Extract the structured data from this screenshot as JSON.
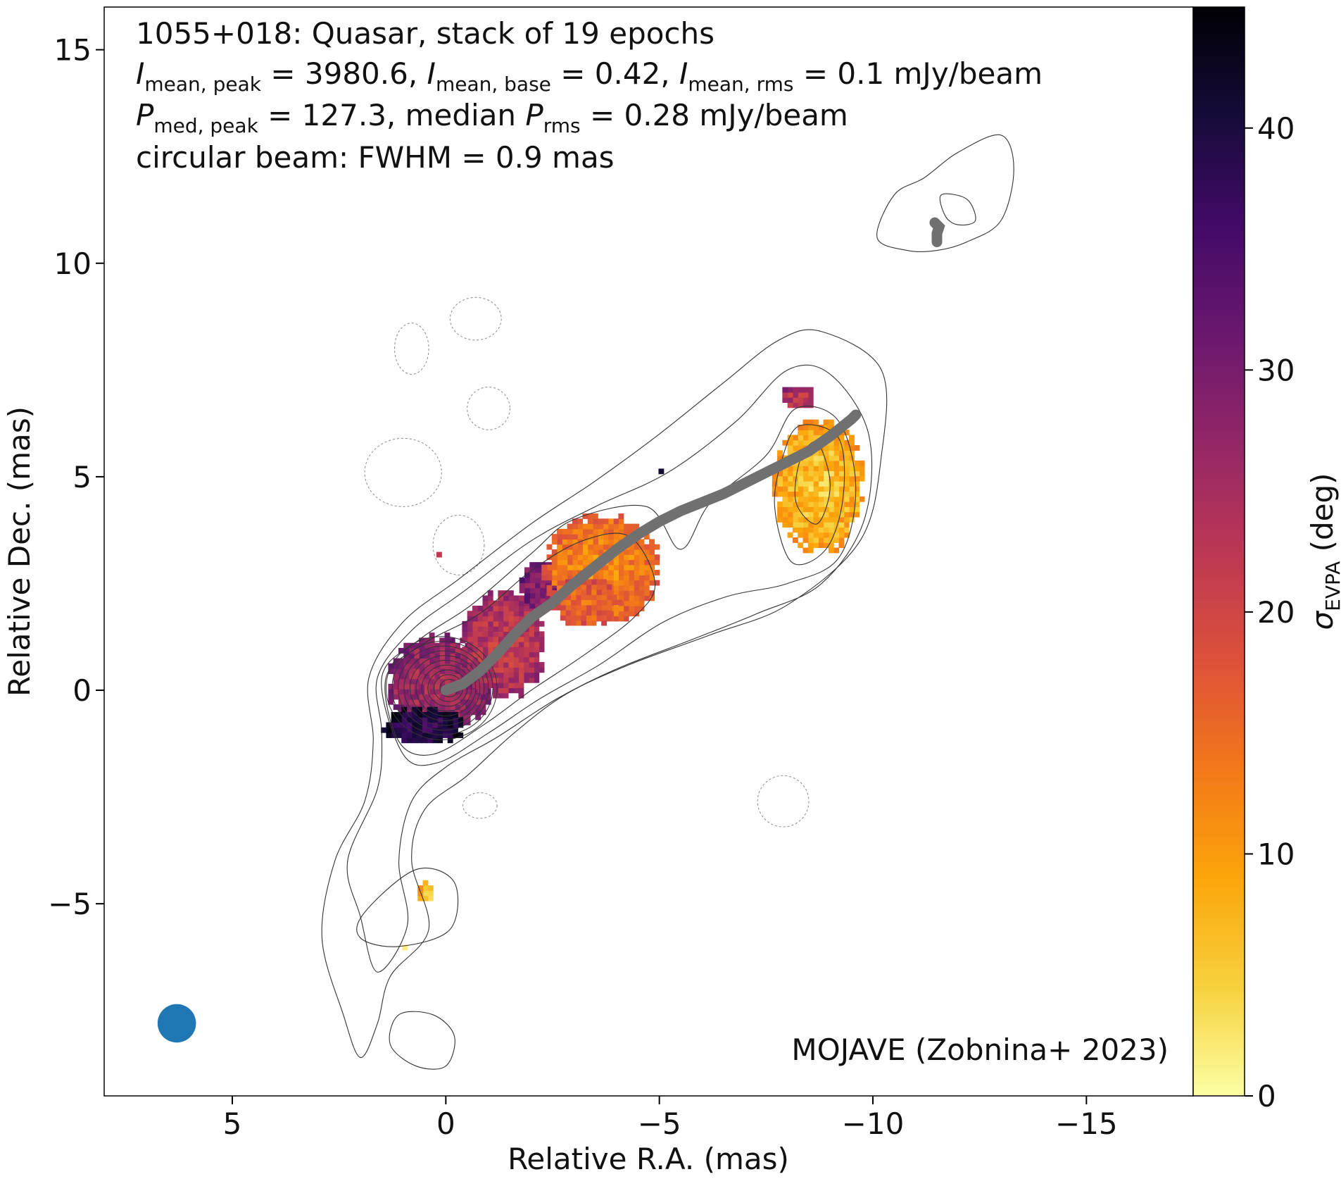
{
  "chart_data": {
    "type": "heatmap",
    "title_lines": [
      "1055+018: Quasar, stack of 19 epochs",
      "I_mean,peak = 3980.6, I_mean,base = 0.42, I_mean,rms = 0.1 mJy/beam",
      "P_med,peak = 127.3, median P_rms = 0.28 mJy/beam",
      "circular beam: FWHM = 0.9 mas"
    ],
    "title": {
      "line1": "1055+018: Quasar, stack of 19 epochs",
      "l2_i1": "I",
      "l2_s1": "mean, peak",
      "l2_t1": " = 3980.6, ",
      "l2_i2": "I",
      "l2_s2": "mean, base",
      "l2_t2": " = 0.42, ",
      "l2_i3": "I",
      "l2_s3": "mean, rms",
      "l2_t3": " = 0.1 mJy/beam",
      "l3_i1": "P",
      "l3_s1": "med, peak",
      "l3_t1": " = 127.3, median ",
      "l3_i2": "P",
      "l3_s2": "rms",
      "l3_t2": " = 0.28 mJy/beam",
      "line4": "circular beam: FWHM = 0.9 mas"
    },
    "credit": "MOJAVE (Zobnina+ 2023)",
    "xlabel": "Relative R.A. (mas)",
    "ylabel": "Relative Dec. (mas)",
    "xlim": [
      8,
      -17.5
    ],
    "ylim": [
      -9.5,
      16
    ],
    "xticks": [
      5,
      0,
      -5,
      -10,
      -15
    ],
    "xtick_labels": [
      "5",
      "0",
      "−5",
      "−10",
      "−15"
    ],
    "yticks": [
      -5,
      0,
      5,
      10,
      15
    ],
    "ytick_labels": [
      "−5",
      "0",
      "5",
      "10",
      "15"
    ],
    "colorbar": {
      "label_symbol": "σ",
      "label_sub": "EVPA",
      "label_unit": " (deg)",
      "cmap": "inferno_r",
      "range": [
        0,
        45
      ],
      "ticks": [
        0,
        10,
        20,
        30,
        40
      ],
      "tick_labels": [
        "0",
        "10",
        "20",
        "30",
        "40"
      ],
      "colors": [
        "#fcffa4",
        "#f7d13d",
        "#fca50a",
        "#f37819",
        "#dd513a",
        "#bc3754",
        "#932667",
        "#6a176e",
        "#420a68",
        "#160b39",
        "#000004"
      ]
    },
    "beam": {
      "x": 6.3,
      "y": -7.8,
      "fwhm": 0.9,
      "color": "#1f77b4"
    },
    "ridgeline": {
      "color": "#707070",
      "x": [
        0,
        -0.4,
        -0.8,
        -1.2,
        -1.6,
        -2.0,
        -2.5,
        -3.0,
        -3.5,
        -4.0,
        -4.5,
        -5.0,
        -5.5,
        -6.0,
        -6.5,
        -7.0,
        -7.5,
        -8.0,
        -8.5,
        -9.0,
        -9.5,
        -9.6
      ],
      "y": [
        0,
        0.15,
        0.45,
        0.85,
        1.3,
        1.7,
        2.05,
        2.5,
        2.9,
        3.3,
        3.65,
        3.95,
        4.2,
        4.4,
        4.6,
        4.85,
        5.1,
        5.35,
        5.6,
        5.95,
        6.35,
        6.45
      ]
    },
    "ridgeline_tail": {
      "x": [
        -11.5,
        -11.5,
        -11.55,
        -11.45
      ],
      "y": [
        10.5,
        10.7,
        10.85,
        10.95
      ]
    },
    "sigma_evpa_regions": [
      {
        "name": "core",
        "x": 0.2,
        "y": 0.1,
        "rx": 1.25,
        "ry": 1.15,
        "value": 25
      },
      {
        "name": "core-edge",
        "x": 0.6,
        "y": -0.9,
        "rx": 1.0,
        "ry": 0.45,
        "value": 38
      },
      {
        "name": "inner-jet",
        "x": -1.3,
        "y": 1.0,
        "rx": 1.0,
        "ry": 1.3,
        "value": 22
      },
      {
        "name": "inner-jet-edge",
        "x": -2.2,
        "y": 2.4,
        "rx": 0.6,
        "ry": 0.6,
        "value": 28
      },
      {
        "name": "mid-jet",
        "x": -3.6,
        "y": 2.8,
        "rx": 1.4,
        "ry": 1.3,
        "value": 12
      },
      {
        "name": "mid-jet-inner",
        "x": -3.2,
        "y": 2.0,
        "rx": 0.8,
        "ry": 0.6,
        "value": 15
      },
      {
        "name": "outer-jet",
        "x": -8.7,
        "y": 4.7,
        "rx": 1.1,
        "ry": 1.6,
        "value": 6
      },
      {
        "name": "outer-jet-spot",
        "x": -8.2,
        "y": 6.8,
        "rx": 0.4,
        "ry": 0.3,
        "value": 22
      },
      {
        "name": "south-spot",
        "x": 0.5,
        "y": -4.8,
        "rx": 0.2,
        "ry": 0.25,
        "value": 5
      },
      {
        "name": "south-dot",
        "x": 1.0,
        "y": -6.1,
        "rx": 0.1,
        "ry": 0.1,
        "value": 4
      },
      {
        "name": "pixel-1",
        "x": -5.0,
        "y": 5.05,
        "rx": 0.1,
        "ry": 0.1,
        "value": 44
      },
      {
        "name": "pixel-2",
        "x": 0.2,
        "y": 3.1,
        "rx": 0.1,
        "ry": 0.1,
        "value": 22
      }
    ],
    "intensity_contours": [
      {
        "name": "c1",
        "points": [
          [
            1.8,
            0.3
          ],
          [
            1.0,
            1.6
          ],
          [
            -0.3,
            2.6
          ],
          [
            -2.0,
            3.9
          ],
          [
            -3.5,
            4.9
          ],
          [
            -5.0,
            6.0
          ],
          [
            -6.5,
            7.2
          ],
          [
            -7.8,
            8.2
          ],
          [
            -8.8,
            8.4
          ],
          [
            -10.2,
            7.5
          ],
          [
            -10.2,
            5.5
          ],
          [
            -9.7,
            3.5
          ],
          [
            -8.0,
            2.0
          ],
          [
            -6.2,
            1.3
          ],
          [
            -4.3,
            0.6
          ],
          [
            -2.8,
            -0.1
          ],
          [
            -1.6,
            -1.0
          ],
          [
            -0.5,
            -2.0
          ],
          [
            0.5,
            -2.8
          ],
          [
            0.8,
            -4.0
          ],
          [
            0.4,
            -5.6
          ],
          [
            1.3,
            -6.7
          ],
          [
            1.6,
            -7.8
          ],
          [
            2.0,
            -8.6
          ],
          [
            2.4,
            -7.6
          ],
          [
            2.9,
            -5.8
          ],
          [
            2.6,
            -4.0
          ],
          [
            1.9,
            -2.6
          ],
          [
            1.7,
            -1.2
          ]
        ]
      },
      {
        "name": "c2",
        "points": [
          [
            1.6,
            0.3
          ],
          [
            0.8,
            1.4
          ],
          [
            -0.4,
            2.3
          ],
          [
            -2.0,
            3.5
          ],
          [
            -3.5,
            4.3
          ],
          [
            -5.2,
            5.1
          ],
          [
            -6.8,
            6.3
          ],
          [
            -8.0,
            7.5
          ],
          [
            -9.0,
            7.4
          ],
          [
            -9.9,
            6.0
          ],
          [
            -9.8,
            4.0
          ],
          [
            -8.8,
            2.5
          ],
          [
            -7.3,
            1.8
          ],
          [
            -5.8,
            1.2
          ],
          [
            -4.0,
            0.5
          ],
          [
            -2.6,
            -0.2
          ],
          [
            -1.2,
            -1.1
          ],
          [
            0.0,
            -1.8
          ],
          [
            0.8,
            -2.6
          ],
          [
            1.1,
            -4.0
          ],
          [
            0.9,
            -5.5
          ],
          [
            1.6,
            -6.6
          ],
          [
            2.0,
            -5.3
          ],
          [
            2.3,
            -4.0
          ],
          [
            1.6,
            -2.3
          ],
          [
            1.5,
            -1.0
          ]
        ]
      },
      {
        "name": "c3",
        "points": [
          [
            1.5,
            0.3
          ],
          [
            0.6,
            1.2
          ],
          [
            -0.6,
            2.0
          ],
          [
            -2.0,
            3.2
          ],
          [
            -3.0,
            4.0
          ],
          [
            -4.7,
            4.3
          ],
          [
            -5.5,
            3.3
          ],
          [
            -6.2,
            4.4
          ],
          [
            -7.5,
            5.5
          ],
          [
            -8.2,
            6.6
          ],
          [
            -9.2,
            6.3
          ],
          [
            -9.6,
            4.7
          ],
          [
            -9.2,
            3.1
          ],
          [
            -8.0,
            2.5
          ],
          [
            -6.6,
            2.2
          ],
          [
            -5.1,
            1.6
          ],
          [
            -3.6,
            0.6
          ],
          [
            -2.2,
            -0.2
          ],
          [
            -1.0,
            -1.0
          ],
          [
            0.2,
            -1.7
          ],
          [
            1.0,
            -1.5
          ]
        ]
      },
      {
        "name": "c4",
        "points": [
          [
            1.4,
            0.3
          ],
          [
            0.5,
            1.1
          ],
          [
            -0.8,
            1.8
          ],
          [
            -2.0,
            2.8
          ],
          [
            -3.2,
            3.5
          ],
          [
            -4.3,
            3.6
          ],
          [
            -4.9,
            2.5
          ],
          [
            -4.4,
            1.7
          ],
          [
            -3.2,
            0.8
          ],
          [
            -2.0,
            0.0
          ],
          [
            -0.9,
            -0.8
          ],
          [
            0.3,
            -1.5
          ],
          [
            1.1,
            -1.2
          ]
        ]
      },
      {
        "name": "c5",
        "points": [
          [
            -8.3,
            6.2
          ],
          [
            -9.2,
            5.9
          ],
          [
            -9.3,
            4.5
          ],
          [
            -8.9,
            3.3
          ],
          [
            -8.1,
            3.0
          ],
          [
            -7.7,
            4.3
          ],
          [
            -7.9,
            5.5
          ]
        ]
      },
      {
        "name": "c6",
        "points": [
          [
            -8.7,
            5.8
          ],
          [
            -9.0,
            4.8
          ],
          [
            -8.7,
            3.9
          ],
          [
            -8.2,
            4.4
          ],
          [
            -8.3,
            5.4
          ]
        ]
      },
      {
        "name": "c7",
        "points": [
          [
            -10.1,
            10.6
          ],
          [
            -10.5,
            11.6
          ],
          [
            -11.2,
            12.0
          ],
          [
            -12.0,
            12.6
          ],
          [
            -13.0,
            13.0
          ],
          [
            -13.3,
            12.2
          ],
          [
            -13.0,
            11.0
          ],
          [
            -12.2,
            10.5
          ],
          [
            -11.5,
            10.3
          ],
          [
            -10.8,
            10.3
          ]
        ]
      },
      {
        "name": "c8",
        "points": [
          [
            -11.6,
            11.6
          ],
          [
            -12.2,
            11.5
          ],
          [
            -12.4,
            11.0
          ],
          [
            -12.0,
            10.9
          ],
          [
            -11.7,
            11.1
          ]
        ]
      },
      {
        "name": "c9",
        "points": [
          [
            1.9,
            -5.2
          ],
          [
            0.7,
            -4.2
          ],
          [
            -0.2,
            -4.5
          ],
          [
            -0.1,
            -5.6
          ],
          [
            1.1,
            -6.0
          ],
          [
            2.0,
            -5.8
          ]
        ]
      },
      {
        "name": "c10",
        "points": [
          [
            1.1,
            -7.6
          ],
          [
            0.3,
            -7.6
          ],
          [
            -0.2,
            -8.1
          ],
          [
            0.0,
            -8.8
          ],
          [
            0.7,
            -8.8
          ],
          [
            1.3,
            -8.3
          ]
        ]
      }
    ],
    "core_contour_count": 10,
    "negative_contours": [
      {
        "name": "n1",
        "x": -0.7,
        "y": 8.7,
        "rx": 0.6,
        "ry": 0.5
      },
      {
        "name": "n2",
        "x": 0.8,
        "y": 8.0,
        "rx": 0.4,
        "ry": 0.6
      },
      {
        "name": "n3",
        "x": -1.0,
        "y": 6.6,
        "rx": 0.5,
        "ry": 0.5
      },
      {
        "name": "n4",
        "x": 1.0,
        "y": 5.1,
        "rx": 0.9,
        "ry": 0.8
      },
      {
        "name": "n5",
        "x": -0.3,
        "y": 3.4,
        "rx": 0.6,
        "ry": 0.7
      },
      {
        "name": "n6",
        "x": -7.9,
        "y": -2.6,
        "rx": 0.6,
        "ry": 0.6
      },
      {
        "name": "n7",
        "x": -0.8,
        "y": -2.7,
        "rx": 0.4,
        "ry": 0.3
      }
    ]
  }
}
